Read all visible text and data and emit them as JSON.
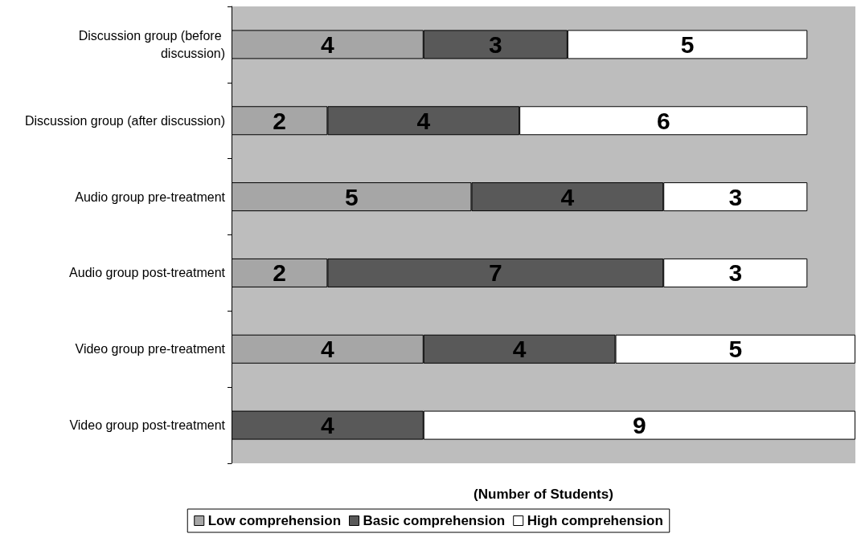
{
  "chart_data": {
    "type": "bar",
    "orientation": "horizontal",
    "stacked": true,
    "data_labels": true,
    "tick_labels": "y",
    "grid": false,
    "legend": "bottom",
    "xlabel": "(Number of Students)",
    "categories": [
      "Discussion group (before discussion)",
      "Discussion group (after discussion)",
      "Audio group pre-treatment",
      "Audio group post-treatment",
      "Video group pre-treatment",
      "Video group post-treatment"
    ],
    "series": [
      {
        "name": "Low comprehension",
        "color": "#a6a6a6",
        "values": [
          4,
          2,
          5,
          2,
          4,
          null
        ]
      },
      {
        "name": "Basic comprehension",
        "color": "#595959",
        "values": [
          3,
          4,
          4,
          7,
          4,
          4
        ]
      },
      {
        "name": "High comprehension",
        "color": "#ffffff",
        "values": [
          5,
          6,
          3,
          3,
          5,
          9
        ]
      }
    ]
  }
}
